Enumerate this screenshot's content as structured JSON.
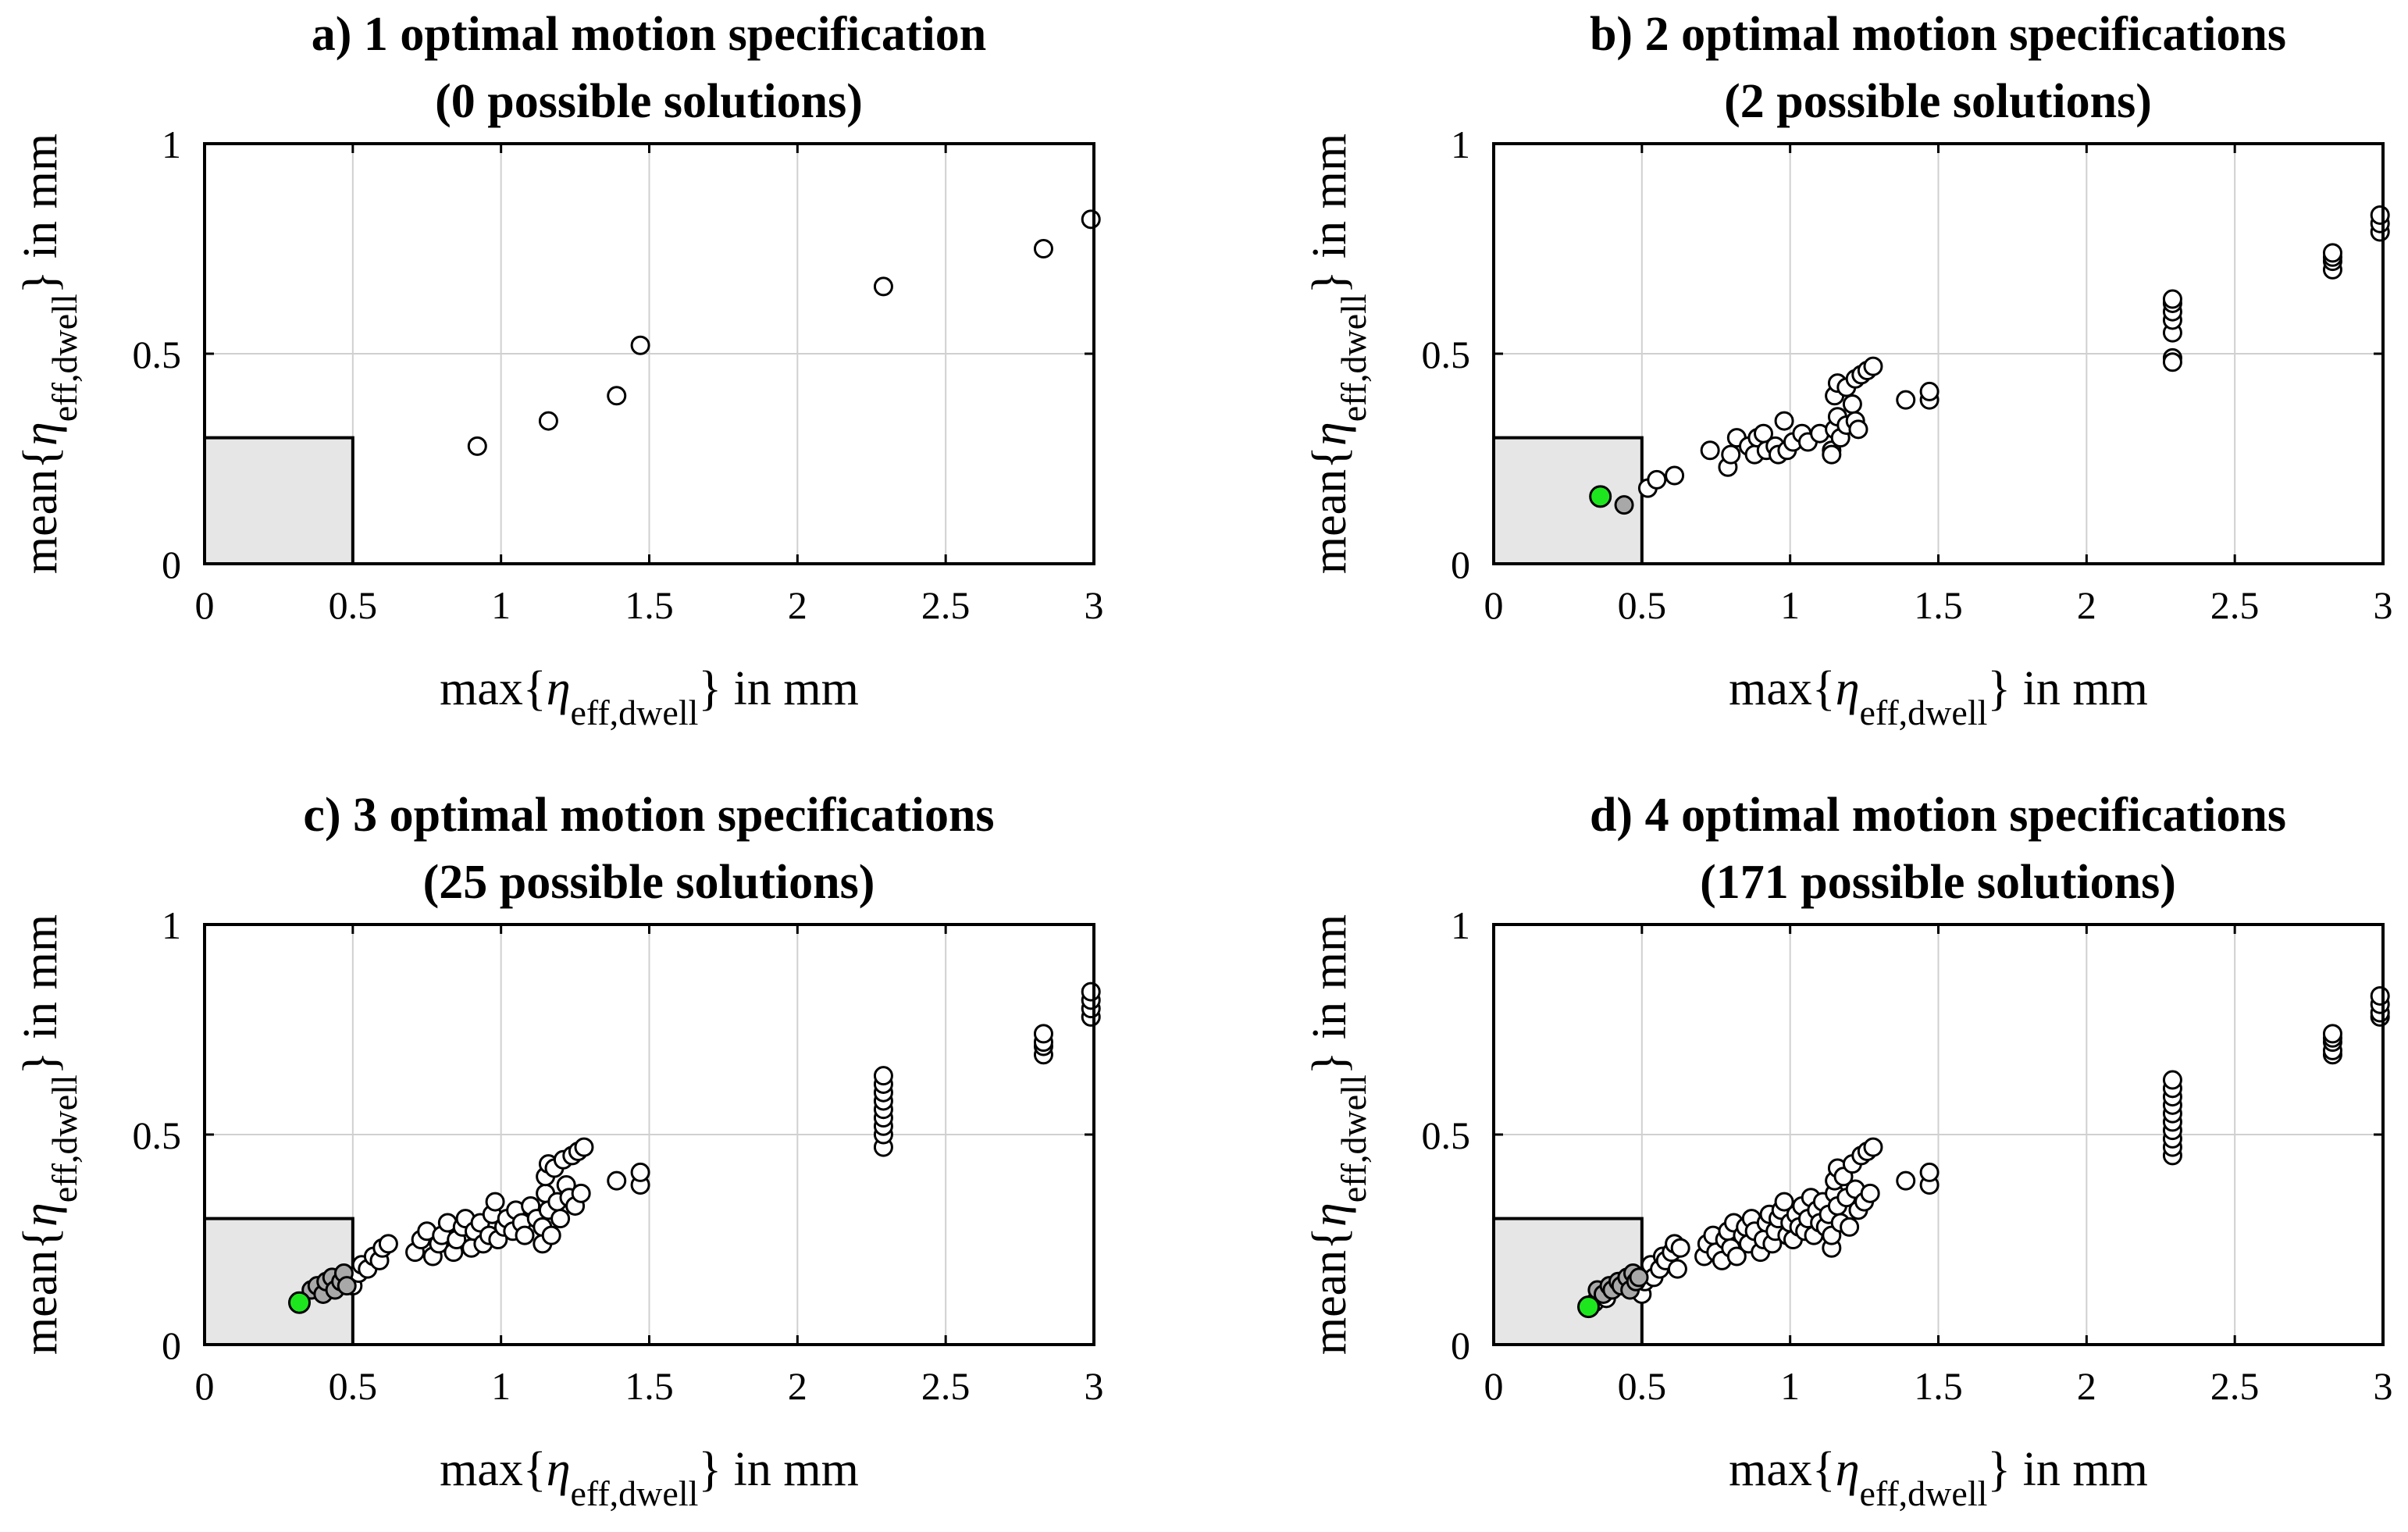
{
  "colors": {
    "marker_default": "#ffffff",
    "marker_near": "#a8a8a8",
    "marker_best": "#1ee61e",
    "feasible_region": "#e6e6e6",
    "grid": "#d0d0d0"
  },
  "chart_data": [
    {
      "type": "scatter",
      "title_line1": "a) 1 optimal motion specification",
      "title_line2": "(0 possible solutions)",
      "xlabel": {
        "pre": "max{",
        "symbol": "η",
        "sub": "eff,dwell",
        "post": "} in mm"
      },
      "ylabel": {
        "pre": "mean{",
        "symbol": "η",
        "sub": "eff,dwell",
        "post": "} in mm"
      },
      "xlim": [
        0,
        3
      ],
      "ylim": [
        0,
        1
      ],
      "xticks": [
        0,
        0.5,
        1,
        1.5,
        2,
        2.5,
        3
      ],
      "yticks": [
        0,
        0.5,
        1
      ],
      "xtick_labels": [
        "0",
        "0.5",
        "1",
        "1.5",
        "2",
        "2.5",
        "3"
      ],
      "ytick_labels": [
        "0",
        "0.5",
        "1"
      ],
      "grid": true,
      "feasible_region": {
        "xmax": 0.5,
        "ymax": 0.3
      },
      "points": [
        [
          0.92,
          0.28
        ],
        [
          1.16,
          0.34
        ],
        [
          1.39,
          0.4
        ],
        [
          1.47,
          0.52
        ],
        [
          2.29,
          0.66
        ],
        [
          2.83,
          0.75
        ],
        [
          2.99,
          0.82
        ]
      ],
      "near_points": [],
      "best_point": null
    },
    {
      "type": "scatter",
      "title_line1": "b) 2 optimal motion specifications",
      "title_line2": "(2 possible solutions)",
      "xlabel": {
        "pre": "max{",
        "symbol": "η",
        "sub": "eff,dwell",
        "post": "} in mm"
      },
      "ylabel": {
        "pre": "mean{",
        "symbol": "η",
        "sub": "eff,dwell",
        "post": "} in mm"
      },
      "xlim": [
        0,
        3
      ],
      "ylim": [
        0,
        1
      ],
      "xticks": [
        0,
        0.5,
        1,
        1.5,
        2,
        2.5,
        3
      ],
      "yticks": [
        0,
        0.5,
        1
      ],
      "xtick_labels": [
        "0",
        "0.5",
        "1",
        "1.5",
        "2",
        "2.5",
        "3"
      ],
      "ytick_labels": [
        "0",
        "0.5",
        "1"
      ],
      "grid": true,
      "feasible_region": {
        "xmax": 0.5,
        "ymax": 0.3
      },
      "points": [
        [
          0.52,
          0.18
        ],
        [
          0.55,
          0.2
        ],
        [
          0.61,
          0.21
        ],
        [
          0.73,
          0.27
        ],
        [
          0.79,
          0.23
        ],
        [
          0.8,
          0.26
        ],
        [
          0.82,
          0.3
        ],
        [
          0.86,
          0.28
        ],
        [
          0.88,
          0.26
        ],
        [
          0.89,
          0.3
        ],
        [
          0.91,
          0.31
        ],
        [
          0.92,
          0.27
        ],
        [
          0.95,
          0.28
        ],
        [
          0.96,
          0.26
        ],
        [
          0.98,
          0.34
        ],
        [
          0.99,
          0.27
        ],
        [
          1.01,
          0.29
        ],
        [
          1.04,
          0.31
        ],
        [
          1.06,
          0.29
        ],
        [
          1.1,
          0.31
        ],
        [
          1.14,
          0.27
        ],
        [
          1.14,
          0.26
        ],
        [
          1.15,
          0.32
        ],
        [
          1.15,
          0.4
        ],
        [
          1.16,
          0.43
        ],
        [
          1.16,
          0.35
        ],
        [
          1.17,
          0.3
        ],
        [
          1.19,
          0.42
        ],
        [
          1.19,
          0.33
        ],
        [
          1.21,
          0.38
        ],
        [
          1.22,
          0.44
        ],
        [
          1.22,
          0.34
        ],
        [
          1.23,
          0.32
        ],
        [
          1.24,
          0.45
        ],
        [
          1.26,
          0.46
        ],
        [
          1.28,
          0.47
        ],
        [
          1.39,
          0.39
        ],
        [
          1.47,
          0.39
        ],
        [
          1.47,
          0.41
        ],
        [
          2.29,
          0.49
        ],
        [
          2.29,
          0.48
        ],
        [
          2.29,
          0.55
        ],
        [
          2.29,
          0.58
        ],
        [
          2.29,
          0.6
        ],
        [
          2.29,
          0.62
        ],
        [
          2.29,
          0.63
        ],
        [
          2.83,
          0.7
        ],
        [
          2.83,
          0.72
        ],
        [
          2.83,
          0.73
        ],
        [
          2.83,
          0.74
        ],
        [
          2.99,
          0.79
        ],
        [
          2.99,
          0.81
        ],
        [
          2.99,
          0.83
        ]
      ],
      "near_points": [
        [
          0.44,
          0.14
        ]
      ],
      "best_point": [
        0.36,
        0.16
      ]
    },
    {
      "type": "scatter",
      "title_line1": "c) 3 optimal motion specifications",
      "title_line2": "(25 possible solutions)",
      "xlabel": {
        "pre": "max{",
        "symbol": "η",
        "sub": "eff,dwell",
        "post": "} in mm"
      },
      "ylabel": {
        "pre": "mean{",
        "symbol": "η",
        "sub": "eff,dwell",
        "post": "} in mm"
      },
      "xlim": [
        0,
        3
      ],
      "ylim": [
        0,
        1
      ],
      "xticks": [
        0,
        0.5,
        1,
        1.5,
        2,
        2.5,
        3
      ],
      "yticks": [
        0,
        0.5,
        1
      ],
      "xtick_labels": [
        "0",
        "0.5",
        "1",
        "1.5",
        "2",
        "2.5",
        "3"
      ],
      "ytick_labels": [
        "0",
        "0.5",
        "1"
      ],
      "grid": true,
      "feasible_region": {
        "xmax": 0.5,
        "ymax": 0.3
      },
      "points": [
        [
          0.5,
          0.14
        ],
        [
          0.52,
          0.17
        ],
        [
          0.53,
          0.19
        ],
        [
          0.55,
          0.18
        ],
        [
          0.57,
          0.21
        ],
        [
          0.59,
          0.2
        ],
        [
          0.6,
          0.23
        ],
        [
          0.62,
          0.24
        ],
        [
          0.71,
          0.22
        ],
        [
          0.73,
          0.25
        ],
        [
          0.75,
          0.27
        ],
        [
          0.77,
          0.21
        ],
        [
          0.79,
          0.24
        ],
        [
          0.8,
          0.26
        ],
        [
          0.82,
          0.29
        ],
        [
          0.84,
          0.22
        ],
        [
          0.85,
          0.25
        ],
        [
          0.87,
          0.28
        ],
        [
          0.88,
          0.3
        ],
        [
          0.9,
          0.23
        ],
        [
          0.91,
          0.27
        ],
        [
          0.93,
          0.29
        ],
        [
          0.94,
          0.24
        ],
        [
          0.96,
          0.26
        ],
        [
          0.97,
          0.31
        ],
        [
          0.98,
          0.34
        ],
        [
          0.99,
          0.25
        ],
        [
          1.01,
          0.28
        ],
        [
          1.02,
          0.3
        ],
        [
          1.04,
          0.27
        ],
        [
          1.05,
          0.32
        ],
        [
          1.07,
          0.29
        ],
        [
          1.08,
          0.26
        ],
        [
          1.1,
          0.33
        ],
        [
          1.12,
          0.3
        ],
        [
          1.14,
          0.24
        ],
        [
          1.14,
          0.28
        ],
        [
          1.15,
          0.36
        ],
        [
          1.15,
          0.4
        ],
        [
          1.16,
          0.43
        ],
        [
          1.16,
          0.32
        ],
        [
          1.17,
          0.26
        ],
        [
          1.18,
          0.42
        ],
        [
          1.19,
          0.34
        ],
        [
          1.2,
          0.3
        ],
        [
          1.21,
          0.44
        ],
        [
          1.22,
          0.38
        ],
        [
          1.23,
          0.35
        ],
        [
          1.24,
          0.45
        ],
        [
          1.25,
          0.33
        ],
        [
          1.26,
          0.46
        ],
        [
          1.27,
          0.36
        ],
        [
          1.28,
          0.47
        ],
        [
          1.39,
          0.39
        ],
        [
          1.47,
          0.38
        ],
        [
          1.47,
          0.41
        ],
        [
          2.29,
          0.47
        ],
        [
          2.29,
          0.5
        ],
        [
          2.29,
          0.52
        ],
        [
          2.29,
          0.54
        ],
        [
          2.29,
          0.56
        ],
        [
          2.29,
          0.58
        ],
        [
          2.29,
          0.6
        ],
        [
          2.29,
          0.62
        ],
        [
          2.29,
          0.64
        ],
        [
          2.83,
          0.69
        ],
        [
          2.83,
          0.71
        ],
        [
          2.83,
          0.72
        ],
        [
          2.83,
          0.74
        ],
        [
          2.99,
          0.78
        ],
        [
          2.99,
          0.8
        ],
        [
          2.99,
          0.82
        ],
        [
          2.99,
          0.84
        ]
      ],
      "near_points": [
        [
          0.36,
          0.13
        ],
        [
          0.38,
          0.14
        ],
        [
          0.4,
          0.12
        ],
        [
          0.41,
          0.15
        ],
        [
          0.43,
          0.16
        ],
        [
          0.44,
          0.13
        ],
        [
          0.46,
          0.15
        ],
        [
          0.47,
          0.17
        ],
        [
          0.48,
          0.14
        ]
      ],
      "best_point": [
        0.32,
        0.1
      ]
    },
    {
      "type": "scatter",
      "title_line1": "d) 4 optimal motion specifications",
      "title_line2": "(171 possible solutions)",
      "xlabel": {
        "pre": "max{",
        "symbol": "η",
        "sub": "eff,dwell",
        "post": "} in mm"
      },
      "ylabel": {
        "pre": "mean{",
        "symbol": "η",
        "sub": "eff,dwell",
        "post": "} in mm"
      },
      "xlim": [
        0,
        3
      ],
      "ylim": [
        0,
        1
      ],
      "xticks": [
        0,
        0.5,
        1,
        1.5,
        2,
        2.5,
        3
      ],
      "yticks": [
        0,
        0.5,
        1
      ],
      "xtick_labels": [
        "0",
        "0.5",
        "1",
        "1.5",
        "2",
        "2.5",
        "3"
      ],
      "ytick_labels": [
        "0",
        "0.5",
        "1"
      ],
      "grid": true,
      "feasible_region": {
        "xmax": 0.5,
        "ymax": 0.3
      },
      "points": [
        [
          0.34,
          0.1
        ],
        [
          0.36,
          0.12
        ],
        [
          0.38,
          0.11
        ],
        [
          0.5,
          0.12
        ],
        [
          0.51,
          0.15
        ],
        [
          0.52,
          0.17
        ],
        [
          0.53,
          0.19
        ],
        [
          0.54,
          0.16
        ],
        [
          0.56,
          0.18
        ],
        [
          0.57,
          0.21
        ],
        [
          0.58,
          0.2
        ],
        [
          0.6,
          0.22
        ],
        [
          0.61,
          0.24
        ],
        [
          0.62,
          0.18
        ],
        [
          0.63,
          0.23
        ],
        [
          0.71,
          0.21
        ],
        [
          0.72,
          0.24
        ],
        [
          0.74,
          0.26
        ],
        [
          0.75,
          0.22
        ],
        [
          0.77,
          0.2
        ],
        [
          0.78,
          0.25
        ],
        [
          0.79,
          0.27
        ],
        [
          0.8,
          0.23
        ],
        [
          0.81,
          0.29
        ],
        [
          0.82,
          0.21
        ],
        [
          0.84,
          0.26
        ],
        [
          0.85,
          0.28
        ],
        [
          0.86,
          0.24
        ],
        [
          0.87,
          0.3
        ],
        [
          0.88,
          0.27
        ],
        [
          0.9,
          0.22
        ],
        [
          0.91,
          0.25
        ],
        [
          0.92,
          0.29
        ],
        [
          0.93,
          0.31
        ],
        [
          0.94,
          0.24
        ],
        [
          0.95,
          0.27
        ],
        [
          0.96,
          0.3
        ],
        [
          0.97,
          0.32
        ],
        [
          0.98,
          0.34
        ],
        [
          0.99,
          0.26
        ],
        [
          1.0,
          0.29
        ],
        [
          1.01,
          0.25
        ],
        [
          1.02,
          0.31
        ],
        [
          1.03,
          0.28
        ],
        [
          1.04,
          0.33
        ],
        [
          1.05,
          0.27
        ],
        [
          1.06,
          0.3
        ],
        [
          1.07,
          0.35
        ],
        [
          1.08,
          0.26
        ],
        [
          1.09,
          0.32
        ],
        [
          1.1,
          0.29
        ],
        [
          1.11,
          0.34
        ],
        [
          1.12,
          0.28
        ],
        [
          1.13,
          0.31
        ],
        [
          1.14,
          0.23
        ],
        [
          1.14,
          0.26
        ],
        [
          1.15,
          0.36
        ],
        [
          1.15,
          0.39
        ],
        [
          1.16,
          0.42
        ],
        [
          1.16,
          0.33
        ],
        [
          1.17,
          0.29
        ],
        [
          1.18,
          0.4
        ],
        [
          1.19,
          0.35
        ],
        [
          1.2,
          0.28
        ],
        [
          1.21,
          0.43
        ],
        [
          1.22,
          0.37
        ],
        [
          1.23,
          0.32
        ],
        [
          1.24,
          0.45
        ],
        [
          1.25,
          0.34
        ],
        [
          1.26,
          0.46
        ],
        [
          1.27,
          0.36
        ],
        [
          1.28,
          0.47
        ],
        [
          1.39,
          0.39
        ],
        [
          1.47,
          0.38
        ],
        [
          1.47,
          0.41
        ],
        [
          2.29,
          0.45
        ],
        [
          2.29,
          0.47
        ],
        [
          2.29,
          0.49
        ],
        [
          2.29,
          0.51
        ],
        [
          2.29,
          0.53
        ],
        [
          2.29,
          0.55
        ],
        [
          2.29,
          0.57
        ],
        [
          2.29,
          0.59
        ],
        [
          2.29,
          0.61
        ],
        [
          2.29,
          0.63
        ],
        [
          2.83,
          0.69
        ],
        [
          2.83,
          0.7
        ],
        [
          2.83,
          0.72
        ],
        [
          2.83,
          0.73
        ],
        [
          2.83,
          0.74
        ],
        [
          2.99,
          0.78
        ],
        [
          2.99,
          0.79
        ],
        [
          2.99,
          0.81
        ],
        [
          2.99,
          0.83
        ]
      ],
      "near_points": [
        [
          0.35,
          0.13
        ],
        [
          0.37,
          0.12
        ],
        [
          0.39,
          0.14
        ],
        [
          0.4,
          0.13
        ],
        [
          0.42,
          0.15
        ],
        [
          0.43,
          0.14
        ],
        [
          0.45,
          0.16
        ],
        [
          0.46,
          0.13
        ],
        [
          0.47,
          0.17
        ],
        [
          0.48,
          0.15
        ],
        [
          0.49,
          0.16
        ]
      ],
      "best_point": [
        0.32,
        0.09
      ]
    }
  ]
}
